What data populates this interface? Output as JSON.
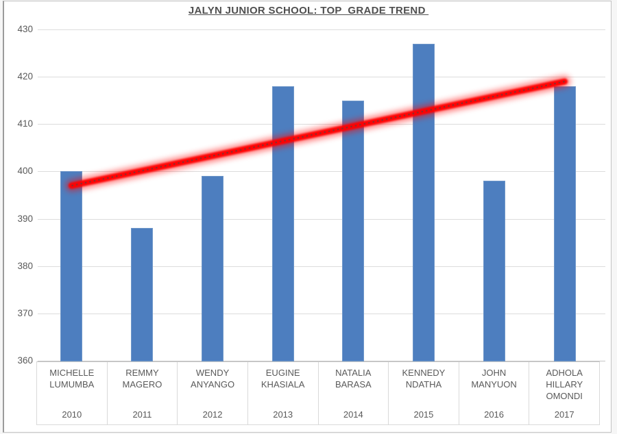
{
  "window": {
    "background_color": "#ffffff",
    "frame_border_color": "#c2c2c2"
  },
  "chart_data": {
    "type": "bar",
    "title": "JALYN JUNIOR SCHOOL: TOP  GRADE TREND ",
    "categories": [
      "MICHELLE LUMUMBA",
      "REMMY MAGERO",
      "WENDY ANYANGO",
      "EUGINE KHASIALA",
      "NATALIA BARASA",
      "KENNEDY NDATHA",
      "JOHN MANYUON",
      "ADHOLA HILLARY OMONDI"
    ],
    "category_years": [
      "2010",
      "2011",
      "2012",
      "2013",
      "2014",
      "2015",
      "2016",
      "2017"
    ],
    "values": [
      400,
      388,
      399,
      418,
      415,
      427,
      398,
      418
    ],
    "xlabel": "",
    "ylabel": "",
    "ylim": [
      360,
      430
    ],
    "yticks": [
      430,
      420,
      410,
      400,
      390,
      380,
      370,
      360
    ],
    "grid": true,
    "legend": "none",
    "bar_color": "#4d7ebf",
    "bar_border_color": "#6f97c9",
    "gridline_color": "#dcdcdc",
    "text_color": "#595959",
    "trendline": {
      "type": "linear",
      "glow_color": "#ff0000",
      "dot_color": "#922b2b",
      "start_value": 397,
      "end_value": 419
    }
  }
}
